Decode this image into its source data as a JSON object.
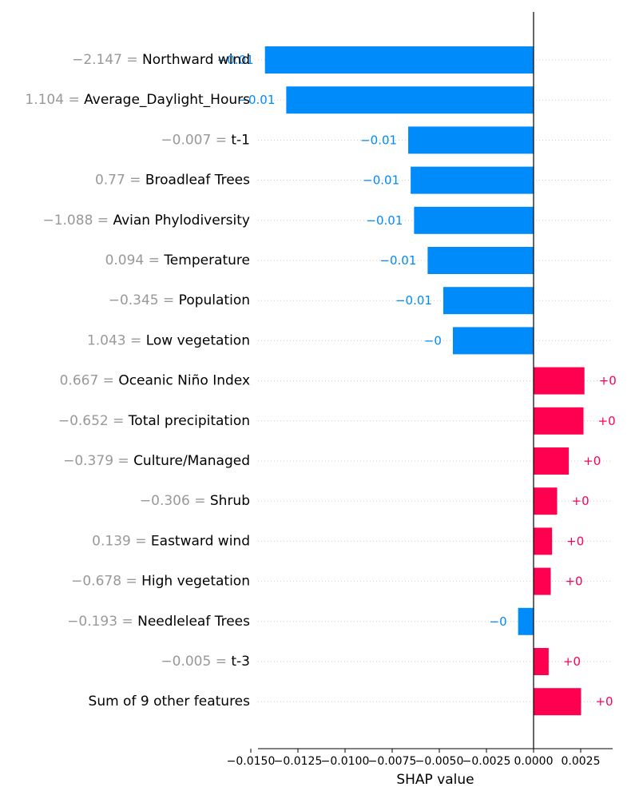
{
  "chart_data": {
    "type": "bar",
    "orientation": "horizontal",
    "xlabel": "SHAP value",
    "xlim": [
      -0.0158,
      0.0043
    ],
    "xticks": [
      -0.015,
      -0.0125,
      -0.01,
      -0.0075,
      -0.005,
      -0.0025,
      0.0,
      0.0025
    ],
    "xtick_labels": [
      "−0.0150",
      "−0.0125",
      "−0.0100",
      "−0.0075",
      "−0.0050",
      "−0.0025",
      "0.0000",
      "0.0025"
    ],
    "grid": "dotted row lines",
    "colors": {
      "negative": "#008bfb",
      "positive": "#ff0051",
      "feature_value": "#999999",
      "feature_name": "#000000"
    },
    "features": [
      {
        "value_text": "−2.147",
        "name": "Northward wind",
        "shap": -0.01425,
        "label": "−0.01"
      },
      {
        "value_text": "1.104",
        "name": "Average_Daylight_Hours",
        "shap": -0.01312,
        "label": "−0.01"
      },
      {
        "value_text": "−0.007",
        "name": "t-1",
        "shap": -0.00665,
        "label": "−0.01"
      },
      {
        "value_text": "0.77",
        "name": "Broadleaf Trees",
        "shap": -0.00652,
        "label": "−0.01"
      },
      {
        "value_text": "−1.088",
        "name": "Avian Phylodiversity",
        "shap": -0.00634,
        "label": "−0.01"
      },
      {
        "value_text": "0.094",
        "name": "Temperature",
        "shap": -0.00562,
        "label": "−0.01"
      },
      {
        "value_text": "−0.345",
        "name": "Population",
        "shap": -0.00479,
        "label": "−0.01"
      },
      {
        "value_text": "1.043",
        "name": "Low vegetation",
        "shap": -0.00428,
        "label": "−0"
      },
      {
        "value_text": "0.667",
        "name": "Oceanic Niño Index",
        "shap": 0.0027,
        "label": "+0"
      },
      {
        "value_text": "−0.652",
        "name": "Total precipitation",
        "shap": 0.00265,
        "label": "+0"
      },
      {
        "value_text": "−0.379",
        "name": "Culture/Managed",
        "shap": 0.00187,
        "label": "+0"
      },
      {
        "value_text": "−0.306",
        "name": "Shrub",
        "shap": 0.00125,
        "label": "+0"
      },
      {
        "value_text": "0.139",
        "name": "Eastward wind",
        "shap": 0.00098,
        "label": "+0"
      },
      {
        "value_text": "−0.678",
        "name": "High vegetation",
        "shap": 0.00091,
        "label": "+0"
      },
      {
        "value_text": "−0.193",
        "name": "Needleleaf Trees",
        "shap": -0.00082,
        "label": "−0"
      },
      {
        "value_text": "−0.005",
        "name": "t-3",
        "shap": 0.0008,
        "label": "+0"
      },
      {
        "value_text": "",
        "name": "Sum of 9 other features",
        "shap": 0.00252,
        "label": "+0"
      }
    ]
  }
}
